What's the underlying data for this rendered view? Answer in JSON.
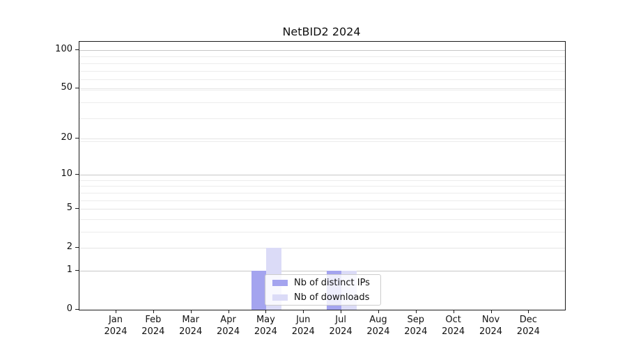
{
  "title": "NetBID2 2024",
  "colors": {
    "distinct_ips": "#a4a4ef",
    "downloads": "#dbdbf7",
    "grid_major": "#c7c7c7",
    "grid_minor": "#ececec",
    "spine": "#1a1a1a",
    "legend_border": "#cccccc"
  },
  "legend": {
    "items": [
      {
        "label": "Nb of distinct IPs",
        "swatch_color": "#a4a4ef"
      },
      {
        "label": "Nb of downloads",
        "swatch_color": "#dbdbf7"
      }
    ]
  },
  "x_axis": {
    "months": [
      "Jan",
      "Feb",
      "Mar",
      "Apr",
      "May",
      "Jun",
      "Jul",
      "Aug",
      "Sep",
      "Oct",
      "Nov",
      "Dec"
    ],
    "year": "2024"
  },
  "y_axis": {
    "tick_labels": [
      "0",
      "1",
      "2",
      "5",
      "10",
      "20",
      "50",
      "100"
    ]
  },
  "chart_data": {
    "type": "bar",
    "title": "NetBID2 2024",
    "categories": [
      "Jan 2024",
      "Feb 2024",
      "Mar 2024",
      "Apr 2024",
      "May 2024",
      "Jun 2024",
      "Jul 2024",
      "Aug 2024",
      "Sep 2024",
      "Oct 2024",
      "Nov 2024",
      "Dec 2024"
    ],
    "series": [
      {
        "name": "Nb of distinct IPs",
        "color": "#a4a4ef",
        "values": [
          0,
          0,
          0,
          0,
          1,
          0,
          1,
          0,
          0,
          0,
          0,
          0
        ]
      },
      {
        "name": "Nb of downloads",
        "color": "#dbdbf7",
        "values": [
          0,
          0,
          0,
          0,
          2,
          0,
          1,
          0,
          0,
          0,
          0,
          0
        ]
      }
    ],
    "xlabel": "",
    "ylabel": "",
    "yscale": "log10(1+y)",
    "yticks": [
      0,
      1,
      2,
      5,
      10,
      20,
      50,
      100
    ],
    "ylim": [
      0,
      115
    ],
    "grid": "horizontal, major and minor",
    "legend_position": "lower center, inside axes, overlapping May-Jul bars"
  }
}
